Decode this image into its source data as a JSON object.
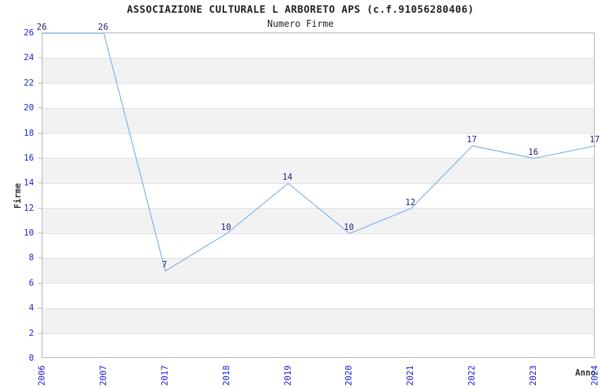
{
  "chart_data": {
    "type": "line",
    "title": "ASSOCIAZIONE CULTURALE L ARBORETO APS (c.f.91056280406)",
    "subtitle": "Numero Firme",
    "xlabel": "Anno",
    "ylabel": "Firme",
    "x": [
      "2006",
      "2007",
      "2017",
      "2018",
      "2019",
      "2020",
      "2021",
      "2022",
      "2023",
      "2024"
    ],
    "values": [
      26,
      26,
      7,
      10,
      14,
      10,
      12,
      17,
      16,
      17
    ],
    "value_labels": [
      "26",
      "26",
      "7",
      "10",
      "14",
      "10",
      "12",
      "17",
      "16",
      "17"
    ],
    "ylim": [
      0,
      26
    ],
    "ytick_step": 2,
    "ytick_labels": [
      "0",
      "2",
      "4",
      "6",
      "8",
      "10",
      "12",
      "14",
      "16",
      "18",
      "20",
      "22",
      "24",
      "26"
    ],
    "grid": "horizontal gridlines with alternating shaded bands",
    "legend": "none",
    "colors": {
      "line": "#7fb3e8",
      "band_fill": "#f2f2f2",
      "gridline": "#e0e0e0",
      "frame": "#b0b0b0",
      "tick_label": "#2323d6",
      "value_label": "#24247e",
      "title_text": "#1f1f1f",
      "axis_title_text": "#333333",
      "background": "#ffffff"
    }
  }
}
